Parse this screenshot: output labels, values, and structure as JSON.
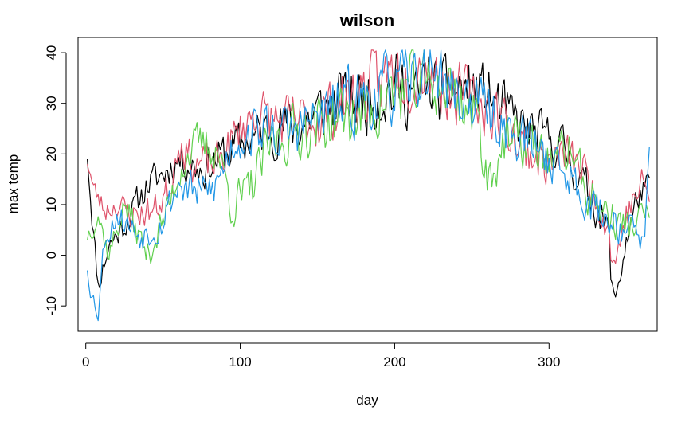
{
  "chart_data": {
    "type": "line",
    "title": "wilson",
    "xlabel": "day",
    "ylabel": "max temp",
    "xlim": [
      -5,
      370
    ],
    "ylim": [
      -15,
      43
    ],
    "xticks": [
      0,
      100,
      200,
      300
    ],
    "yticks": [
      -10,
      0,
      10,
      20,
      30,
      40
    ],
    "grid": false,
    "legend": "none",
    "series": [
      {
        "color": "#000000",
        "seed": 11,
        "x": [
          1,
          365
        ],
        "anchors": [
          [
            1,
            20
          ],
          [
            4,
            8
          ],
          [
            8,
            -6
          ],
          [
            15,
            2
          ],
          [
            25,
            6
          ],
          [
            40,
            14
          ],
          [
            50,
            16
          ],
          [
            60,
            19
          ],
          [
            75,
            17
          ],
          [
            90,
            20
          ],
          [
            100,
            22
          ],
          [
            120,
            25
          ],
          [
            140,
            26
          ],
          [
            160,
            30
          ],
          [
            180,
            31
          ],
          [
            200,
            33
          ],
          [
            210,
            33
          ],
          [
            215,
            30
          ],
          [
            220,
            35
          ],
          [
            225,
            33
          ],
          [
            230,
            32
          ],
          [
            245,
            33
          ],
          [
            260,
            32
          ],
          [
            270,
            29
          ],
          [
            280,
            26
          ],
          [
            290,
            24
          ],
          [
            300,
            23
          ],
          [
            310,
            21
          ],
          [
            320,
            15
          ],
          [
            330,
            10
          ],
          [
            338,
            5
          ],
          [
            342,
            -10
          ],
          [
            350,
            3
          ],
          [
            358,
            12
          ],
          [
            365,
            13
          ]
        ]
      },
      {
        "color": "#DF536B",
        "seed": 23,
        "x": [
          1,
          365
        ],
        "anchors": [
          [
            1,
            19
          ],
          [
            5,
            13
          ],
          [
            12,
            9
          ],
          [
            20,
            10
          ],
          [
            30,
            8
          ],
          [
            45,
            9
          ],
          [
            55,
            14
          ],
          [
            60,
            23
          ],
          [
            70,
            18
          ],
          [
            85,
            18
          ],
          [
            100,
            25
          ],
          [
            110,
            28
          ],
          [
            130,
            26
          ],
          [
            150,
            27
          ],
          [
            170,
            31
          ],
          [
            190,
            34
          ],
          [
            200,
            37
          ],
          [
            210,
            36
          ],
          [
            220,
            38
          ],
          [
            230,
            34
          ],
          [
            240,
            32
          ],
          [
            250,
            31
          ],
          [
            260,
            29
          ],
          [
            270,
            27
          ],
          [
            280,
            22
          ],
          [
            290,
            20
          ],
          [
            300,
            18
          ],
          [
            310,
            20
          ],
          [
            320,
            18
          ],
          [
            330,
            12
          ],
          [
            338,
            6
          ],
          [
            342,
            -2
          ],
          [
            350,
            8
          ],
          [
            360,
            14
          ],
          [
            365,
            12
          ]
        ]
      },
      {
        "color": "#61D04F",
        "seed": 37,
        "x": [
          1,
          365
        ],
        "anchors": [
          [
            1,
            4
          ],
          [
            8,
            8
          ],
          [
            15,
            0
          ],
          [
            25,
            10
          ],
          [
            40,
            0
          ],
          [
            52,
            8
          ],
          [
            62,
            18
          ],
          [
            72,
            22
          ],
          [
            85,
            21
          ],
          [
            95,
            10
          ],
          [
            105,
            12
          ],
          [
            120,
            22
          ],
          [
            140,
            25
          ],
          [
            160,
            27
          ],
          [
            180,
            28
          ],
          [
            200,
            32
          ],
          [
            220,
            34
          ],
          [
            235,
            33
          ],
          [
            245,
            30
          ],
          [
            255,
            26
          ],
          [
            260,
            15
          ],
          [
            270,
            22
          ],
          [
            285,
            22
          ],
          [
            300,
            19
          ],
          [
            315,
            21
          ],
          [
            325,
            12
          ],
          [
            335,
            9
          ],
          [
            345,
            6
          ],
          [
            355,
            6
          ],
          [
            365,
            9
          ]
        ]
      },
      {
        "color": "#2297E6",
        "seed": 53,
        "x": [
          1,
          365
        ],
        "anchors": [
          [
            1,
            -2
          ],
          [
            4,
            -8
          ],
          [
            8,
            -11
          ],
          [
            12,
            3
          ],
          [
            20,
            8
          ],
          [
            35,
            4
          ],
          [
            48,
            6
          ],
          [
            60,
            14
          ],
          [
            75,
            12
          ],
          [
            85,
            14
          ],
          [
            95,
            22
          ],
          [
            110,
            25
          ],
          [
            130,
            24
          ],
          [
            150,
            27
          ],
          [
            170,
            30
          ],
          [
            190,
            32
          ],
          [
            210,
            34
          ],
          [
            225,
            37
          ],
          [
            235,
            33
          ],
          [
            245,
            31
          ],
          [
            260,
            29
          ],
          [
            275,
            24
          ],
          [
            290,
            22
          ],
          [
            305,
            18
          ],
          [
            318,
            14
          ],
          [
            330,
            9
          ],
          [
            345,
            6
          ],
          [
            355,
            5
          ],
          [
            362,
            2
          ],
          [
            365,
            20
          ]
        ]
      }
    ]
  }
}
